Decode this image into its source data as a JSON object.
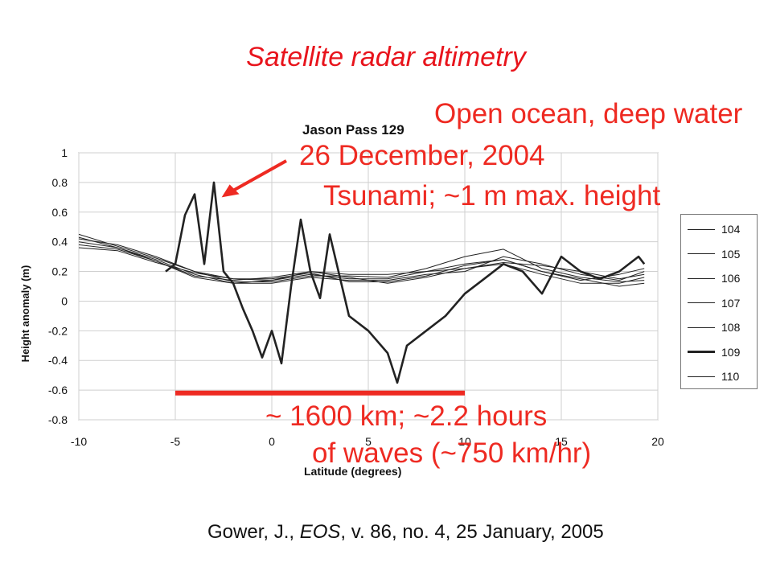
{
  "slide_title": "Satellite radar altimetry",
  "citation": {
    "prefix": "Gower, J., ",
    "journal": "EOS",
    "suffix": ", v. 86, no. 4, 25 January, 2005"
  },
  "annotations": {
    "open_ocean": "Open ocean, deep water",
    "date": "26 December, 2004",
    "tsunami": "Tsunami; ~1 m max. height",
    "span": "~ 1600 km; ~2.2 hours",
    "waves": "of waves (~750 km/hr)"
  },
  "colors": {
    "accent": "#e8141c",
    "annotation": "#ee2a22",
    "series": "#222222"
  },
  "chart_data": {
    "type": "line",
    "title": "Jason Pass 129",
    "xlabel": "Latitude (degrees)",
    "ylabel": "Height anomaly (m)",
    "xlim": [
      -10,
      20
    ],
    "ylim": [
      -0.8,
      1
    ],
    "xticks": [
      -10,
      -5,
      0,
      5,
      10,
      15,
      20
    ],
    "yticks": [
      -0.8,
      -0.6,
      -0.4,
      -0.2,
      0,
      0.2,
      0.4,
      0.6,
      0.8,
      1
    ],
    "ytick_labels": [
      "-0.8",
      "-0.6",
      "-0.4",
      "-0.2",
      "0",
      "0.2",
      "0.4",
      "0.6",
      "0.8",
      "1"
    ],
    "grid": true,
    "legend_position": "right",
    "series": [
      {
        "name": "104",
        "x": [
          -10,
          -8,
          -6,
          -4,
          -2,
          0,
          2,
          4,
          6,
          8,
          10,
          12,
          14,
          16,
          18,
          19.3
        ],
        "y": [
          0.42,
          0.38,
          0.3,
          0.2,
          0.15,
          0.14,
          0.18,
          0.15,
          0.15,
          0.2,
          0.25,
          0.28,
          0.2,
          0.15,
          0.1,
          0.12
        ]
      },
      {
        "name": "105",
        "x": [
          -10,
          -8,
          -6,
          -4,
          -2,
          0,
          2,
          4,
          6,
          8,
          10,
          12,
          14,
          16,
          18,
          19.3
        ],
        "y": [
          0.4,
          0.36,
          0.28,
          0.18,
          0.12,
          0.12,
          0.16,
          0.14,
          0.14,
          0.18,
          0.2,
          0.3,
          0.25,
          0.18,
          0.14,
          0.2
        ]
      },
      {
        "name": "106",
        "x": [
          -10,
          -8,
          -6,
          -4,
          -2,
          0,
          2,
          4,
          6,
          8,
          10,
          12,
          14,
          16,
          18,
          19.3
        ],
        "y": [
          0.38,
          0.35,
          0.27,
          0.17,
          0.14,
          0.16,
          0.2,
          0.16,
          0.12,
          0.16,
          0.22,
          0.25,
          0.18,
          0.12,
          0.12,
          0.16
        ]
      },
      {
        "name": "107",
        "x": [
          -10,
          -8,
          -6,
          -4,
          -2,
          0,
          2,
          4,
          6,
          8,
          10,
          12,
          14,
          16,
          18,
          19.3
        ],
        "y": [
          0.45,
          0.37,
          0.29,
          0.2,
          0.13,
          0.13,
          0.17,
          0.17,
          0.16,
          0.22,
          0.3,
          0.35,
          0.22,
          0.16,
          0.13,
          0.14
        ]
      },
      {
        "name": "108",
        "x": [
          -10,
          -8,
          -6,
          -4,
          -2,
          0,
          2,
          4,
          6,
          8,
          10,
          12,
          14,
          16,
          18,
          19.3
        ],
        "y": [
          0.36,
          0.34,
          0.26,
          0.19,
          0.15,
          0.15,
          0.19,
          0.13,
          0.13,
          0.17,
          0.24,
          0.28,
          0.2,
          0.14,
          0.18,
          0.22
        ]
      },
      {
        "name": "109",
        "x": [
          -5.5,
          -5,
          -4.5,
          -4,
          -3.5,
          -3,
          -2.5,
          -2,
          -1.5,
          -1,
          -0.5,
          0,
          0.5,
          1,
          1.5,
          2,
          2.5,
          3,
          4,
          5,
          6,
          6.5,
          7,
          8,
          9,
          10,
          11,
          12,
          13,
          14,
          15,
          16,
          17,
          18,
          19,
          19.3
        ],
        "y": [
          0.2,
          0.25,
          0.58,
          0.72,
          0.25,
          0.8,
          0.2,
          0.12,
          -0.05,
          -0.2,
          -0.38,
          -0.2,
          -0.42,
          0.1,
          0.55,
          0.2,
          0.02,
          0.45,
          -0.1,
          -0.2,
          -0.35,
          -0.55,
          -0.3,
          -0.2,
          -0.1,
          0.05,
          0.15,
          0.25,
          0.2,
          0.05,
          0.3,
          0.2,
          0.15,
          0.2,
          0.3,
          0.25
        ]
      },
      {
        "name": "110",
        "x": [
          -10,
          -8,
          -6,
          -4,
          -2,
          0,
          2,
          4,
          6,
          8,
          10,
          12,
          14,
          16,
          18,
          19.3
        ],
        "y": [
          0.43,
          0.36,
          0.27,
          0.16,
          0.12,
          0.14,
          0.2,
          0.18,
          0.18,
          0.2,
          0.22,
          0.26,
          0.24,
          0.2,
          0.15,
          0.18
        ]
      }
    ],
    "highlight_series": "109",
    "span_bar": {
      "x": [
        -5,
        10
      ],
      "y": -0.62
    }
  }
}
